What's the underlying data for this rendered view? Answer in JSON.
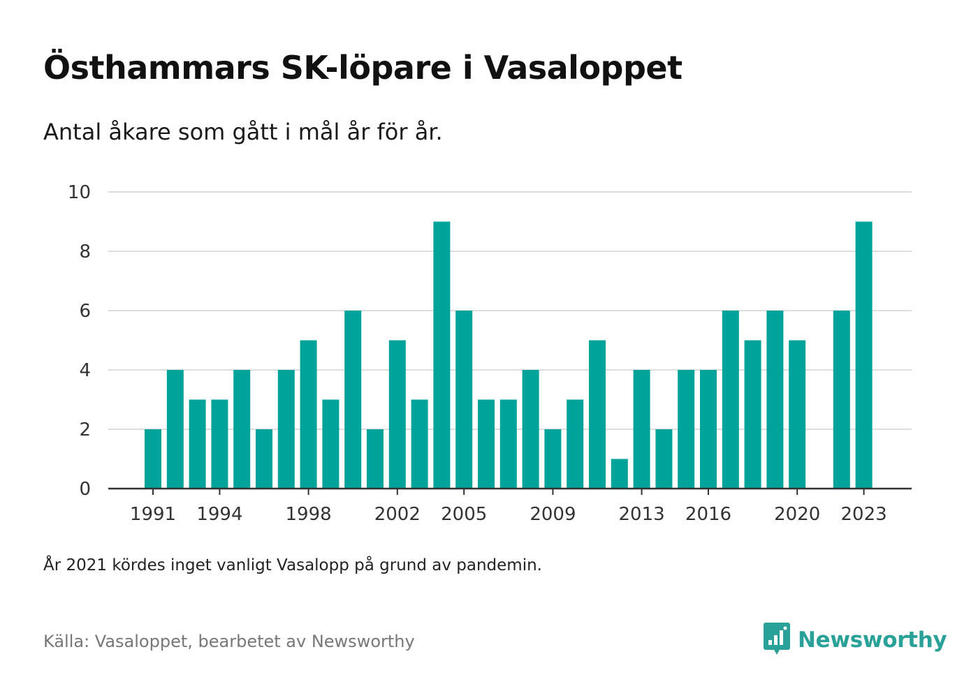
{
  "header": {
    "title": "Östhammars SK-löpare i Vasaloppet",
    "subtitle": "Antal åkare som gått i mål år för år."
  },
  "footer": {
    "note": "År 2021 kördes inget vanligt Vasalopp på grund av pandemin.",
    "source": "Källa: Vasaloppet, bearbetet av Newsworthy",
    "brand": "Newsworthy",
    "brand_icon": "newsworthy-logo-icon"
  },
  "colors": {
    "bar": "#00a39a",
    "grid": "#dddddd",
    "axis": "#333333",
    "brand": "#2aa198"
  },
  "chart_data": {
    "type": "bar",
    "categories": [
      "1991",
      "1992",
      "1993",
      "1994",
      "1995",
      "1996",
      "1997",
      "1998",
      "1999",
      "2000",
      "2001",
      "2002",
      "2003",
      "2004",
      "2005",
      "2006",
      "2007",
      "2008",
      "2009",
      "2010",
      "2011",
      "2012",
      "2013",
      "2014",
      "2015",
      "2016",
      "2017",
      "2018",
      "2019",
      "2020",
      "2021",
      "2022",
      "2023"
    ],
    "values": [
      2,
      4,
      3,
      3,
      4,
      2,
      4,
      5,
      3,
      6,
      2,
      5,
      3,
      9,
      6,
      3,
      3,
      4,
      2,
      3,
      5,
      1,
      4,
      2,
      4,
      4,
      6,
      5,
      6,
      5,
      null,
      6,
      9
    ],
    "x_tick_labels": [
      "1991",
      "1994",
      "1998",
      "2002",
      "2005",
      "2009",
      "2013",
      "2016",
      "2020",
      "2023"
    ],
    "y_ticks": [
      0,
      2,
      4,
      6,
      8,
      10
    ],
    "ylim": [
      0,
      10
    ],
    "grid": true,
    "legend": "none",
    "title": "Östhammars SK-löpare i Vasaloppet",
    "subtitle": "Antal åkare som gått i mål år för år.",
    "xlabel": "",
    "ylabel": ""
  }
}
